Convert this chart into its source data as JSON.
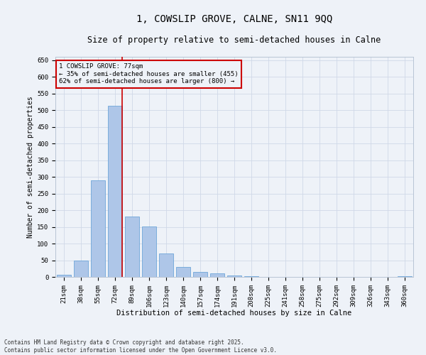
{
  "title": "1, COWSLIP GROVE, CALNE, SN11 9QQ",
  "subtitle": "Size of property relative to semi-detached houses in Calne",
  "xlabel": "Distribution of semi-detached houses by size in Calne",
  "ylabel": "Number of semi-detached properties",
  "categories": [
    "21sqm",
    "38sqm",
    "55sqm",
    "72sqm",
    "89sqm",
    "106sqm",
    "123sqm",
    "140sqm",
    "157sqm",
    "174sqm",
    "191sqm",
    "208sqm",
    "225sqm",
    "241sqm",
    "258sqm",
    "275sqm",
    "292sqm",
    "309sqm",
    "326sqm",
    "343sqm",
    "360sqm"
  ],
  "values": [
    7,
    50,
    290,
    513,
    182,
    151,
    70,
    30,
    15,
    10,
    5,
    2,
    1,
    1,
    0,
    0,
    0,
    0,
    0,
    0,
    3
  ],
  "bar_color": "#aec6e8",
  "bar_edge_color": "#5b9bd5",
  "grid_color": "#d0d8e8",
  "background_color": "#eef2f8",
  "vline_x_index": 3,
  "vline_color": "#cc0000",
  "annotation_line1": "1 COWSLIP GROVE: 77sqm",
  "annotation_line2": "← 35% of semi-detached houses are smaller (455)",
  "annotation_line3": "62% of semi-detached houses are larger (800) →",
  "annotation_box_color": "#cc0000",
  "ylim": [
    0,
    660
  ],
  "yticks": [
    0,
    50,
    100,
    150,
    200,
    250,
    300,
    350,
    400,
    450,
    500,
    550,
    600,
    650
  ],
  "footer_line1": "Contains HM Land Registry data © Crown copyright and database right 2025.",
  "footer_line2": "Contains public sector information licensed under the Open Government Licence v3.0.",
  "title_fontsize": 10,
  "subtitle_fontsize": 8.5,
  "xlabel_fontsize": 7.5,
  "ylabel_fontsize": 7,
  "tick_fontsize": 6.5,
  "annotation_fontsize": 6.5,
  "footer_fontsize": 5.5
}
